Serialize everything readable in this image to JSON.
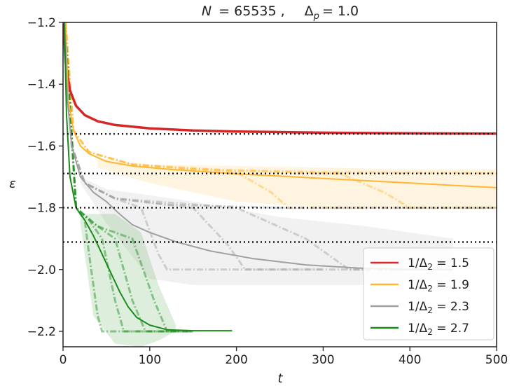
{
  "chart_data": {
    "type": "line",
    "title": "N = 65535 ,    Δp = 1.0",
    "title_parts": {
      "n_label": "N",
      "n_value": "= 65535 ,",
      "delta_label": "Δ",
      "delta_sub": "p",
      "delta_value": "= 1.0"
    },
    "xlabel": "t",
    "ylabel": "ε",
    "xlim": [
      0,
      500
    ],
    "ylim": [
      -2.25,
      -1.2
    ],
    "xticks": [
      0,
      100,
      200,
      300,
      400,
      500
    ],
    "yticks": [
      -1.2,
      -1.4,
      -1.6,
      -1.8,
      -2.0,
      -2.2
    ],
    "ytick_labels": [
      "−1.2",
      "−1.4",
      "−1.6",
      "−1.8",
      "−2.0",
      "−2.2"
    ],
    "grid": false,
    "legend_position": "lower-right",
    "reference_lines": [
      -1.561,
      -1.689,
      -1.8,
      -1.911
    ],
    "series": [
      {
        "name": "1/Δ2 = 1.5",
        "label_prefix": "1/Δ",
        "label_sub": "2",
        "label_value": " = 1.5",
        "color": "#d62728",
        "x": [
          0.5,
          3,
          8,
          15,
          25,
          40,
          60,
          100,
          150,
          200,
          300,
          400,
          500
        ],
        "y": [
          -1.2,
          -1.33,
          -1.42,
          -1.47,
          -1.5,
          -1.52,
          -1.532,
          -1.543,
          -1.55,
          -1.553,
          -1.557,
          -1.559,
          -1.56
        ],
        "band": null,
        "runs": []
      },
      {
        "name": "1/Δ2 = 1.9",
        "label_prefix": "1/Δ",
        "label_sub": "2",
        "label_value": " = 1.9",
        "color": "#ffb732",
        "x": [
          3,
          6,
          12,
          20,
          30,
          50,
          80,
          120,
          200,
          300,
          400,
          500
        ],
        "y": [
          -1.2,
          -1.45,
          -1.55,
          -1.6,
          -1.625,
          -1.65,
          -1.665,
          -1.675,
          -1.69,
          -1.705,
          -1.72,
          -1.735
        ],
        "band": {
          "x": [
            40,
            100,
            200,
            300,
            400,
            500
          ],
          "lower": [
            -1.67,
            -1.72,
            -1.78,
            -1.8,
            -1.8,
            -1.8
          ],
          "upper": [
            -1.64,
            -1.66,
            -1.665,
            -1.67,
            -1.675,
            -1.675
          ]
        },
        "runs": [
          {
            "x": [
              3,
              12,
              30,
              80,
              150,
              300,
              500
            ],
            "y": [
              -1.2,
              -1.55,
              -1.62,
              -1.66,
              -1.675,
              -1.685,
              -1.688
            ]
          },
          {
            "x": [
              3,
              12,
              30,
              80,
              150,
              200,
              240,
              260,
              500
            ],
            "y": [
              -1.2,
              -1.55,
              -1.62,
              -1.66,
              -1.675,
              -1.685,
              -1.75,
              -1.8,
              -1.8
            ]
          },
          {
            "x": [
              3,
              12,
              30,
              80,
              200,
              320,
              370,
              400,
              500
            ],
            "y": [
              -1.2,
              -1.55,
              -1.62,
              -1.66,
              -1.68,
              -1.69,
              -1.75,
              -1.8,
              -1.8
            ]
          }
        ]
      },
      {
        "name": "1/Δ2 = 2.3",
        "label_prefix": "1/Δ",
        "label_sub": "2",
        "label_value": " = 2.3",
        "color": "#a0a0a0",
        "x": [
          2,
          5,
          10,
          20,
          35,
          50,
          65,
          80,
          100,
          130,
          170,
          220,
          280,
          340,
          400,
          450
        ],
        "y": [
          -1.2,
          -1.45,
          -1.6,
          -1.7,
          -1.75,
          -1.78,
          -1.82,
          -1.855,
          -1.88,
          -1.91,
          -1.94,
          -1.965,
          -1.985,
          -1.995,
          -2.0,
          -2.0
        ],
        "band": {
          "x": [
            20,
            50,
            100,
            150,
            250,
            350,
            450
          ],
          "lower": [
            -1.72,
            -1.85,
            -2.03,
            -2.05,
            -2.05,
            -2.05,
            -2.03
          ],
          "upper": [
            -1.7,
            -1.74,
            -1.76,
            -1.78,
            -1.83,
            -1.86,
            -1.9
          ]
        },
        "runs": [
          {
            "x": [
              2,
              10,
              25,
              60,
              120,
              250,
              500
            ],
            "y": [
              -1.2,
              -1.6,
              -1.72,
              -1.77,
              -1.79,
              -1.8,
              -1.8
            ]
          },
          {
            "x": [
              2,
              10,
              25,
              60,
              90,
              110,
              120,
              300
            ],
            "y": [
              -1.2,
              -1.6,
              -1.72,
              -1.77,
              -1.8,
              -1.95,
              -2.0,
              -2.0
            ]
          },
          {
            "x": [
              2,
              10,
              25,
              60,
              150,
              190,
              210,
              400
            ],
            "y": [
              -1.2,
              -1.6,
              -1.72,
              -1.77,
              -1.8,
              -1.92,
              -2.0,
              -2.0
            ]
          },
          {
            "x": [
              2,
              10,
              25,
              60,
              200,
              280,
              330,
              450
            ],
            "y": [
              -1.2,
              -1.6,
              -1.72,
              -1.77,
              -1.8,
              -1.9,
              -2.0,
              -2.0
            ]
          }
        ]
      },
      {
        "name": "1/Δ2 = 2.7",
        "label_prefix": "1/Δ",
        "label_sub": "2",
        "label_value": " = 2.7",
        "color": "#1a8a1a",
        "x": [
          1.5,
          4,
          8,
          15,
          25,
          35,
          45,
          55,
          65,
          75,
          85,
          100,
          120,
          150,
          195
        ],
        "y": [
          -1.2,
          -1.5,
          -1.7,
          -1.8,
          -1.84,
          -1.89,
          -1.95,
          -2.01,
          -2.07,
          -2.12,
          -2.155,
          -2.18,
          -2.195,
          -2.198,
          -2.198
        ],
        "band": {
          "x": [
            20,
            35,
            60,
            90,
            110,
            130
          ],
          "lower": [
            -1.85,
            -2.15,
            -2.24,
            -2.25,
            -2.23,
            -2.2
          ],
          "upper": [
            -1.82,
            -1.82,
            -1.82,
            -1.88,
            -2.05,
            -2.18
          ]
        },
        "runs": [
          {
            "x": [
              2,
              15,
              25,
              30,
              40,
              45,
              150
            ],
            "y": [
              -1.2,
              -1.8,
              -1.84,
              -1.95,
              -2.15,
              -2.2,
              -2.2
            ]
          },
          {
            "x": [
              2,
              15,
              30,
              45,
              60,
              70,
              150
            ],
            "y": [
              -1.2,
              -1.8,
              -1.84,
              -1.9,
              -2.1,
              -2.2,
              -2.2
            ]
          },
          {
            "x": [
              2,
              15,
              35,
              60,
              80,
              95,
              150
            ],
            "y": [
              -1.2,
              -1.8,
              -1.85,
              -1.9,
              -2.1,
              -2.2,
              -2.2
            ]
          },
          {
            "x": [
              2,
              15,
              40,
              80,
              105,
              120,
              150
            ],
            "y": [
              -1.2,
              -1.8,
              -1.86,
              -1.9,
              -2.1,
              -2.2,
              -2.2
            ]
          }
        ]
      }
    ]
  }
}
